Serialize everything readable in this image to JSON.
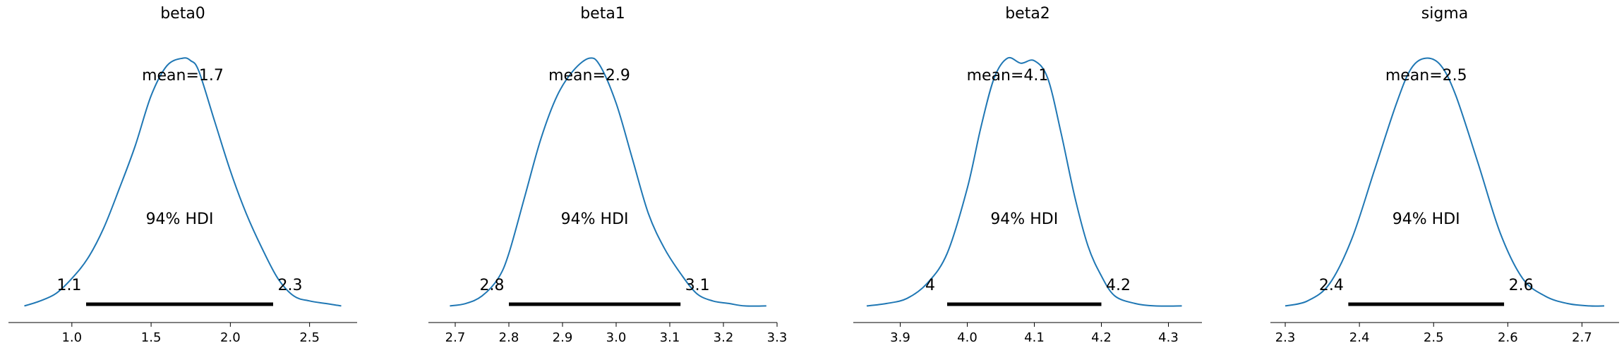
{
  "chart_data": [
    {
      "type": "area",
      "title": "beta0",
      "mean_label": "mean=1.7",
      "hdi_label": "94% HDI",
      "hdi": [
        1.1,
        2.3
      ],
      "hdi_bounds": [
        1.09,
        2.27
      ],
      "hdi_tick_labels": [
        "1.1",
        "2.3"
      ],
      "xlim": [
        0.6,
        2.8
      ],
      "xticks": [
        1.0,
        1.5,
        2.0,
        2.5
      ],
      "xtick_labels": [
        "1.0",
        "1.5",
        "2.0",
        "2.5"
      ],
      "ylim": [
        0,
        1.12
      ],
      "density": {
        "x": [
          0.7,
          0.8,
          0.9,
          1.0,
          1.1,
          1.2,
          1.3,
          1.4,
          1.5,
          1.6,
          1.7,
          1.75,
          1.8,
          1.9,
          2.0,
          2.1,
          2.2,
          2.3,
          2.4,
          2.5,
          2.6,
          2.7
        ],
        "y": [
          0.01,
          0.03,
          0.06,
          0.12,
          0.2,
          0.32,
          0.48,
          0.65,
          0.85,
          0.97,
          1.0,
          0.99,
          0.95,
          0.75,
          0.55,
          0.38,
          0.24,
          0.12,
          0.05,
          0.03,
          0.02,
          0.01
        ]
      }
    },
    {
      "type": "area",
      "title": "beta1",
      "mean_label": "mean=2.9",
      "hdi_label": "94% HDI",
      "hdi": [
        2.8,
        3.1
      ],
      "hdi_bounds": [
        2.8,
        3.12
      ],
      "hdi_tick_labels": [
        "2.8",
        "3.1"
      ],
      "xlim": [
        2.65,
        3.3
      ],
      "xticks": [
        2.7,
        2.8,
        2.9,
        3.0,
        3.1,
        3.2,
        3.3
      ],
      "xtick_labels": [
        "2.7",
        "2.8",
        "2.9",
        "3.0",
        "3.1",
        "3.2",
        "3.3"
      ],
      "ylim": [
        0,
        1.12
      ],
      "density": {
        "x": [
          2.69,
          2.72,
          2.75,
          2.78,
          2.8,
          2.83,
          2.86,
          2.89,
          2.92,
          2.95,
          2.97,
          3.0,
          3.03,
          3.06,
          3.09,
          3.12,
          3.15,
          3.18,
          3.21,
          3.24,
          3.28
        ],
        "y": [
          0.01,
          0.02,
          0.05,
          0.12,
          0.22,
          0.45,
          0.68,
          0.85,
          0.95,
          1.0,
          0.97,
          0.82,
          0.6,
          0.38,
          0.24,
          0.14,
          0.06,
          0.03,
          0.02,
          0.01,
          0.01
        ]
      }
    },
    {
      "type": "area",
      "title": "beta2",
      "mean_label": "mean=4.1",
      "hdi_label": "94% HDI",
      "hdi": [
        4.0,
        4.2
      ],
      "hdi_bounds": [
        3.97,
        4.2
      ],
      "hdi_tick_labels": [
        "4",
        "4.2"
      ],
      "xlim": [
        3.83,
        4.35
      ],
      "xticks": [
        3.9,
        4.0,
        4.1,
        4.2,
        4.3
      ],
      "xtick_labels": [
        "3.9",
        "4.0",
        "4.1",
        "4.2",
        "4.3"
      ],
      "ylim": [
        0,
        1.12
      ],
      "density": {
        "x": [
          3.85,
          3.88,
          3.91,
          3.94,
          3.97,
          4.0,
          4.02,
          4.04,
          4.06,
          4.08,
          4.1,
          4.12,
          4.14,
          4.16,
          4.18,
          4.2,
          4.22,
          4.25,
          4.28,
          4.32
        ],
        "y": [
          0.01,
          0.02,
          0.04,
          0.1,
          0.22,
          0.48,
          0.72,
          0.92,
          1.0,
          0.98,
          0.99,
          0.92,
          0.7,
          0.45,
          0.25,
          0.13,
          0.05,
          0.02,
          0.01,
          0.01
        ]
      }
    },
    {
      "type": "area",
      "title": "sigma",
      "mean_label": "mean=2.5",
      "hdi_label": "94% HDI",
      "hdi": [
        2.4,
        2.6
      ],
      "hdi_bounds": [
        2.385,
        2.595
      ],
      "hdi_tick_labels": [
        "2.4",
        "2.6"
      ],
      "xlim": [
        2.28,
        2.75
      ],
      "xticks": [
        2.3,
        2.4,
        2.5,
        2.6,
        2.7
      ],
      "xtick_labels": [
        "2.3",
        "2.4",
        "2.5",
        "2.6",
        "2.7"
      ],
      "ylim": [
        0,
        1.12
      ],
      "density": {
        "x": [
          2.3,
          2.33,
          2.36,
          2.39,
          2.42,
          2.45,
          2.47,
          2.49,
          2.51,
          2.53,
          2.56,
          2.59,
          2.62,
          2.65,
          2.68,
          2.71,
          2.73
        ],
        "y": [
          0.01,
          0.03,
          0.1,
          0.28,
          0.55,
          0.82,
          0.96,
          1.0,
          0.97,
          0.85,
          0.58,
          0.3,
          0.12,
          0.05,
          0.02,
          0.01,
          0.01
        ]
      }
    }
  ]
}
